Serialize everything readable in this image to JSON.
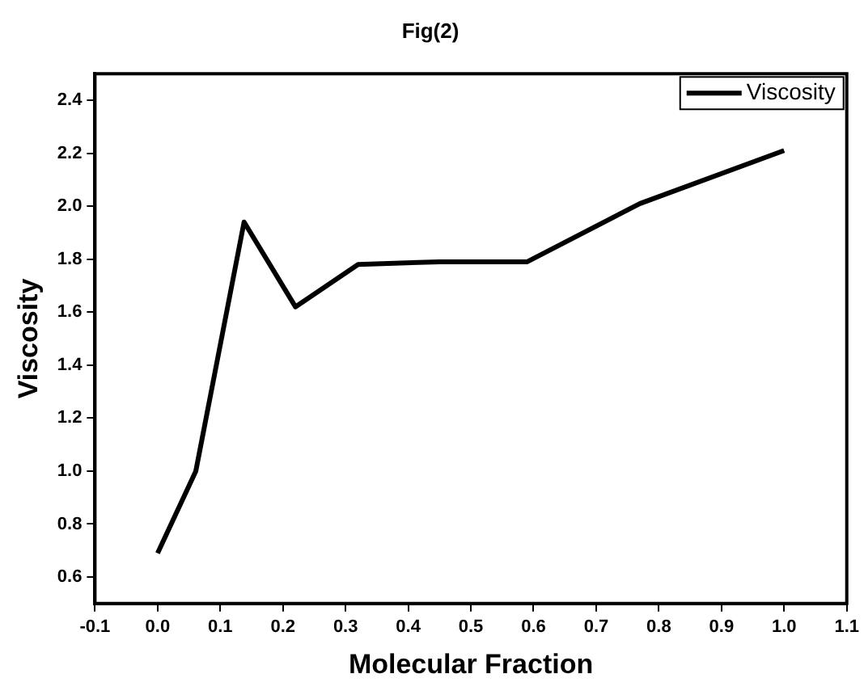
{
  "chart_data": {
    "type": "line",
    "title": "Fig(2)",
    "xlabel": "Molecular Fraction",
    "ylabel": "Viscosity",
    "x": [
      0,
      0.061,
      0.138,
      0.22,
      0.32,
      0.45,
      0.59,
      0.77,
      1.0
    ],
    "series": [
      {
        "name": "Viscosity",
        "color": "#000000",
        "values": [
          0.69,
          1.0,
          1.94,
          1.62,
          1.78,
          1.79,
          1.79,
          2.01,
          2.21
        ]
      }
    ],
    "xlim": [
      -0.1,
      1.1
    ],
    "xticks": [
      {
        "value": -0.1,
        "label": "-0.1"
      },
      {
        "value": 0,
        "label": "0.0"
      },
      {
        "value": 0.1,
        "label": "0.1"
      },
      {
        "value": 0.2,
        "label": "0.2"
      },
      {
        "value": 0.3,
        "label": "0.3"
      },
      {
        "value": 0.4,
        "label": "0.4"
      },
      {
        "value": 0.5,
        "label": "0.5"
      },
      {
        "value": 0.6,
        "label": "0.6"
      },
      {
        "value": 0.7,
        "label": "0.7"
      },
      {
        "value": 0.8,
        "label": "0.8"
      },
      {
        "value": 0.9,
        "label": "0.9"
      },
      {
        "value": 1.0,
        "label": "1.0"
      },
      {
        "value": 1.1,
        "label": "1.1"
      }
    ],
    "ylim": [
      0.5,
      2.5
    ],
    "yticks": [
      {
        "value": 0.6,
        "label": "0.6"
      },
      {
        "value": 0.8,
        "label": "0.8"
      },
      {
        "value": 1.0,
        "label": "1.0"
      },
      {
        "value": 1.2,
        "label": "1.2"
      },
      {
        "value": 1.4,
        "label": "1.4"
      },
      {
        "value": 1.6,
        "label": "1.6"
      },
      {
        "value": 1.8,
        "label": "1.8"
      },
      {
        "value": 2.0,
        "label": "2.0"
      },
      {
        "value": 2.2,
        "label": "2.2"
      },
      {
        "value": 2.4,
        "label": "2.4"
      }
    ],
    "grid": false,
    "legend": "top right",
    "marker": "none",
    "line_style": "solid"
  }
}
